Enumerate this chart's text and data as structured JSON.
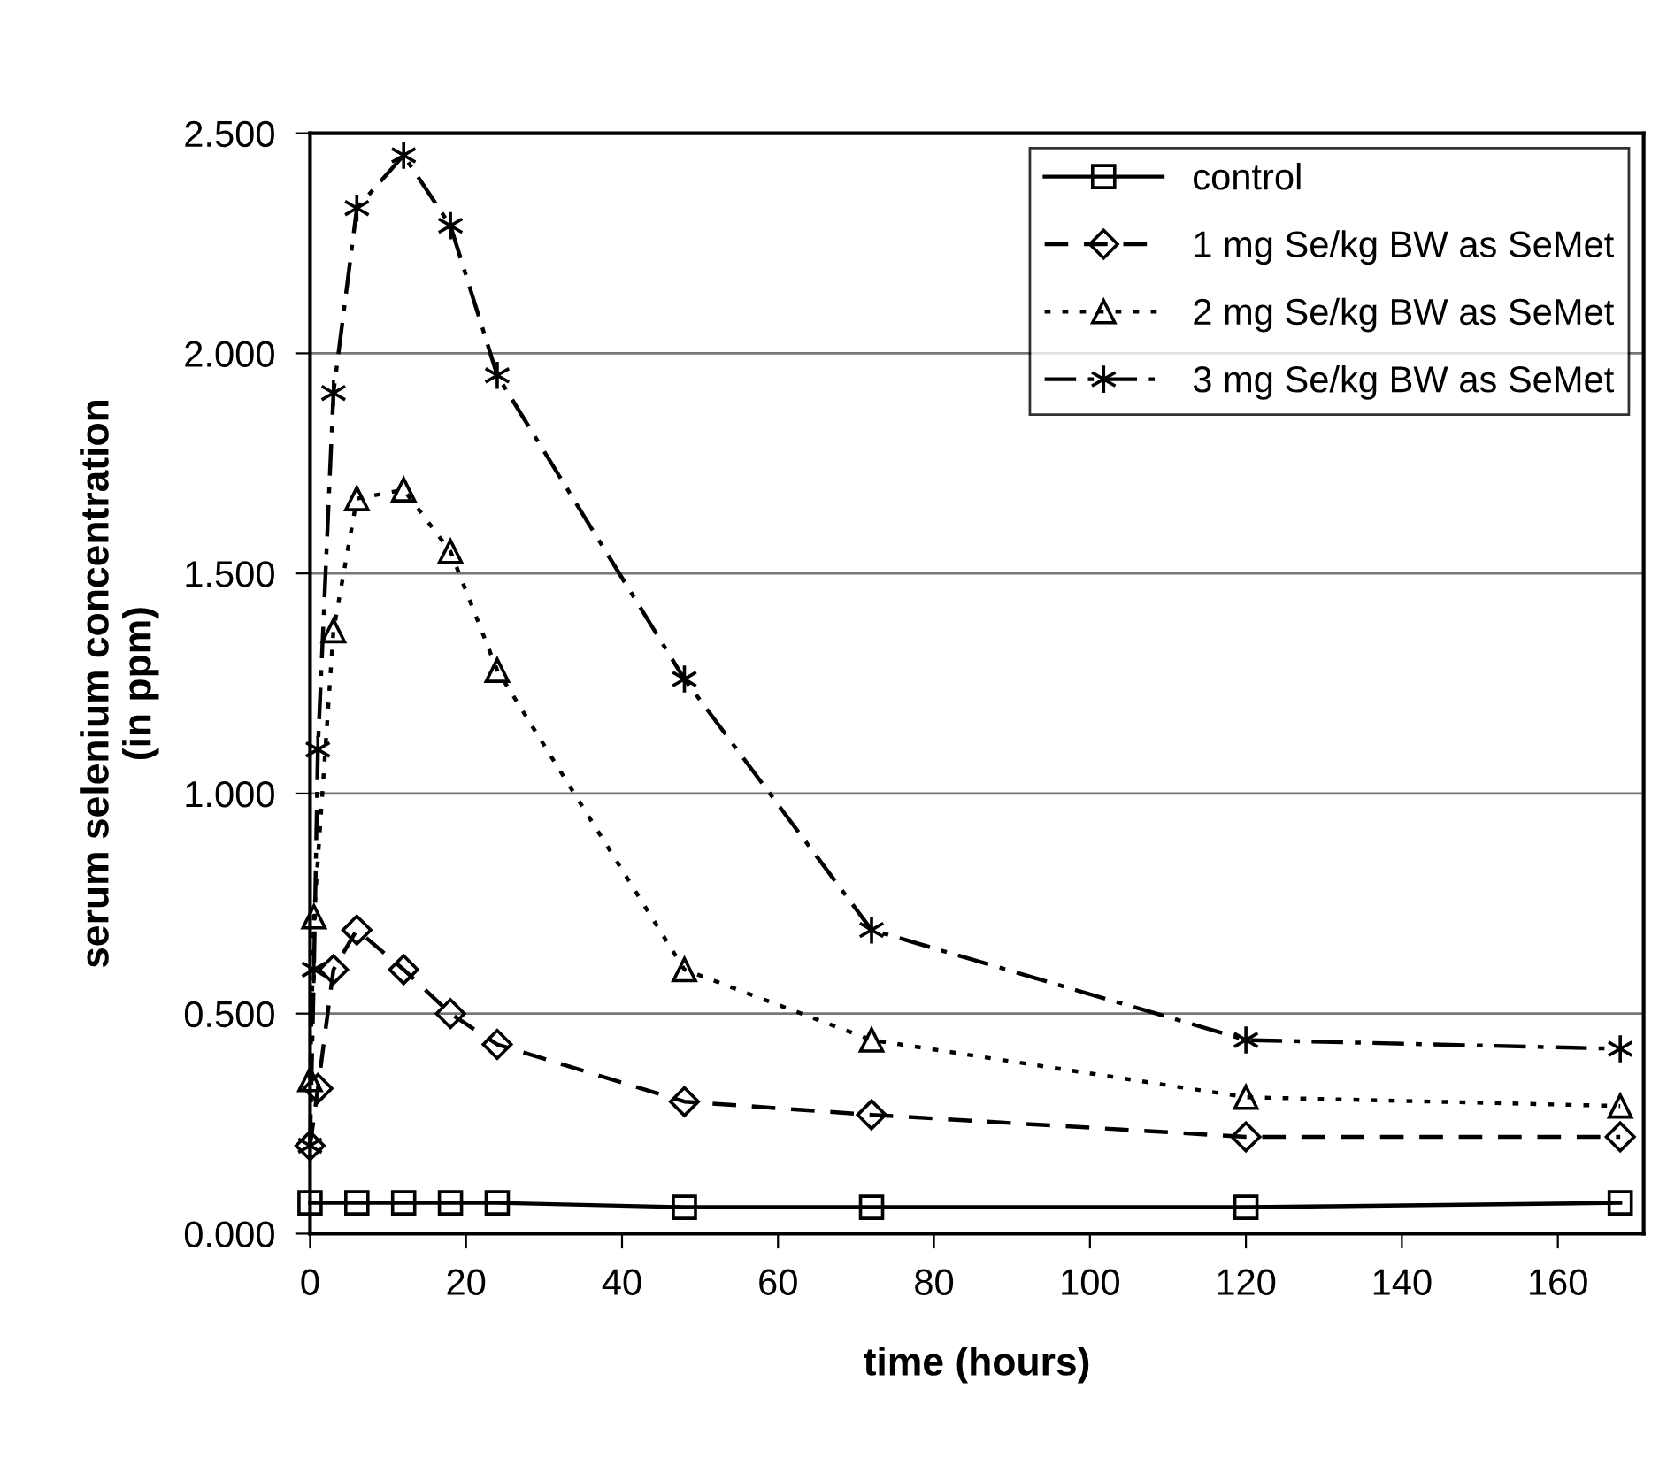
{
  "chart_data": {
    "type": "line",
    "xlabel": "time (hours)",
    "ylabel": "serum selenium concentration\n(in ppm)",
    "xlim": [
      0,
      171
    ],
    "xticks": [
      0,
      20,
      40,
      60,
      80,
      100,
      120,
      140,
      160
    ],
    "ylim": [
      0,
      2.5
    ],
    "yticks": [
      {
        "value": 0,
        "label": "0.000"
      },
      {
        "value": 0.5,
        "label": "0.500"
      },
      {
        "value": 1,
        "label": "1.000"
      },
      {
        "value": 1.5,
        "label": "1.500"
      },
      {
        "value": 2,
        "label": "2.000"
      },
      {
        "value": 2.5,
        "label": "2.500"
      }
    ],
    "grid": "y",
    "legend": "top right",
    "series": [
      {
        "name": "control",
        "color": "#000000",
        "marker": "square",
        "line_style": "solid",
        "x": [
          0,
          6,
          12,
          18,
          24,
          48,
          72,
          120,
          168
        ],
        "values": [
          0.07,
          0.07,
          0.07,
          0.07,
          0.07,
          0.06,
          0.06,
          0.06,
          0.07
        ]
      },
      {
        "name": "1 mg Se/kg BW as SeMet",
        "color": "#000000",
        "marker": "diamond",
        "line_style": "dashed",
        "x": [
          0,
          1,
          3,
          6,
          12,
          18,
          24,
          48,
          72,
          120,
          168
        ],
        "values": [
          0.2,
          0.33,
          0.6,
          0.69,
          0.6,
          0.5,
          0.43,
          0.3,
          0.27,
          0.22,
          0.22
        ]
      },
      {
        "name": "2 mg Se/kg BW as SeMet",
        "color": "#000000",
        "marker": "triangle",
        "line_style": "dotted",
        "x": [
          0,
          0.5,
          3,
          6,
          12,
          18,
          24,
          48,
          72,
          120,
          168
        ],
        "values": [
          0.35,
          0.72,
          1.37,
          1.67,
          1.69,
          1.55,
          1.28,
          0.6,
          0.44,
          0.31,
          0.29
        ]
      },
      {
        "name": "3 mg Se/kg BW as SeMet",
        "color": "#000000",
        "marker": "cross",
        "line_style": "dashdot",
        "x": [
          0,
          0.5,
          1,
          3,
          6,
          12,
          18,
          24,
          48,
          72,
          120,
          168
        ],
        "values": [
          0.2,
          0.6,
          1.1,
          1.91,
          2.33,
          2.45,
          2.29,
          1.95,
          1.26,
          0.69,
          0.44,
          0.42
        ]
      }
    ]
  }
}
